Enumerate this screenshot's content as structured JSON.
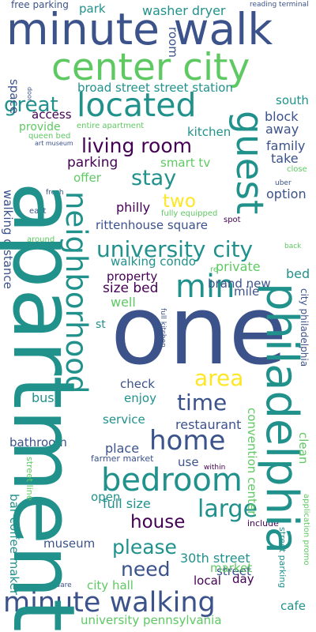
{
  "word_cloud": {
    "background": "#ffffff",
    "palette": [
      "#440154",
      "#3b528b",
      "#21918c",
      "#5ec962",
      "#fde725"
    ],
    "words": [
      {
        "text": "free parking",
        "color": "#3b528b"
      },
      {
        "text": "park",
        "color": "#21918c"
      },
      {
        "text": "reading terminal",
        "color": "#3b528b"
      },
      {
        "text": "minute walk",
        "color": "#3b528b"
      },
      {
        "text": "washer dryer",
        "color": "#21918c"
      },
      {
        "text": "center city",
        "color": "#5ec962"
      },
      {
        "text": "room",
        "color": "#3b528b"
      },
      {
        "text": "located",
        "color": "#21918c"
      },
      {
        "text": "great",
        "color": "#21918c"
      },
      {
        "text": "broad street street station",
        "color": "#21918c"
      },
      {
        "text": "south",
        "color": "#21918c"
      },
      {
        "text": "access",
        "color": "#440154"
      },
      {
        "text": "block",
        "color": "#3b528b"
      },
      {
        "text": "provide",
        "color": "#5ec962"
      },
      {
        "text": "entire apartment",
        "color": "#5ec962"
      },
      {
        "text": "kitchen",
        "color": "#21918c"
      },
      {
        "text": "away",
        "color": "#3b528b"
      },
      {
        "text": "queen bed",
        "color": "#5ec962"
      },
      {
        "text": "art museum",
        "color": "#3b528b"
      },
      {
        "text": "living room",
        "color": "#440154"
      },
      {
        "text": "family",
        "color": "#3b528b"
      },
      {
        "text": "take",
        "color": "#3b528b"
      },
      {
        "text": "close",
        "color": "#5ec962"
      },
      {
        "text": "parking",
        "color": "#440154"
      },
      {
        "text": "smart tv",
        "color": "#5ec962"
      },
      {
        "text": "stay",
        "color": "#21918c"
      },
      {
        "text": "offer",
        "color": "#5ec962"
      },
      {
        "text": "uber",
        "color": "#3b528b"
      },
      {
        "text": "option",
        "color": "#3b528b"
      },
      {
        "text": "two",
        "color": "#fde725"
      },
      {
        "text": "fresh",
        "color": "#3b528b"
      },
      {
        "text": "philly",
        "color": "#440154"
      },
      {
        "text": "east",
        "color": "#3b528b"
      },
      {
        "text": "rittenhouse square",
        "color": "#3b528b"
      },
      {
        "text": "fully equipped",
        "color": "#5ec962"
      },
      {
        "text": "spot",
        "color": "#440154"
      },
      {
        "text": "around",
        "color": "#5ec962"
      },
      {
        "text": "university city",
        "color": "#21918c"
      },
      {
        "text": "back",
        "color": "#5ec962"
      },
      {
        "text": "walking condo",
        "color": "#21918c"
      },
      {
        "text": "min",
        "color": "#21918c"
      },
      {
        "text": "private",
        "color": "#5ec962"
      },
      {
        "text": "re",
        "color": "#5ec962"
      },
      {
        "text": "property",
        "color": "#440154"
      },
      {
        "text": "bed",
        "color": "#21918c"
      },
      {
        "text": "mile",
        "color": "#3b528b"
      },
      {
        "text": "size bed",
        "color": "#440154"
      },
      {
        "text": "brand new",
        "color": "#3b528b"
      },
      {
        "text": "well",
        "color": "#5ec962"
      },
      {
        "text": "st",
        "color": "#21918c"
      },
      {
        "text": "one",
        "color": "#3b528b"
      },
      {
        "text": "area",
        "color": "#fde725"
      },
      {
        "text": "check",
        "color": "#3b528b"
      },
      {
        "text": "time",
        "color": "#3b528b"
      },
      {
        "text": "bus",
        "color": "#21918c"
      },
      {
        "text": "enjoy",
        "color": "#21918c"
      },
      {
        "text": "service",
        "color": "#21918c"
      },
      {
        "text": "restaurant",
        "color": "#3b528b"
      },
      {
        "text": "home",
        "color": "#3b528b"
      },
      {
        "text": "bathroom",
        "color": "#3b528b"
      },
      {
        "text": "place",
        "color": "#3b528b"
      },
      {
        "text": "use",
        "color": "#3b528b"
      },
      {
        "text": "farmer market",
        "color": "#3b528b"
      },
      {
        "text": "within",
        "color": "#440154"
      },
      {
        "text": "bedroom",
        "color": "#21918c"
      },
      {
        "text": "large",
        "color": "#21918c"
      },
      {
        "text": "open",
        "color": "#21918c"
      },
      {
        "text": "full size",
        "color": "#21918c"
      },
      {
        "text": "house",
        "color": "#440154"
      },
      {
        "text": "include",
        "color": "#440154"
      },
      {
        "text": "please",
        "color": "#21918c"
      },
      {
        "text": "museum",
        "color": "#3b528b"
      },
      {
        "text": "30th street",
        "color": "#21918c"
      },
      {
        "text": "street",
        "color": "#3b528b"
      },
      {
        "text": "need",
        "color": "#3b528b"
      },
      {
        "text": "market",
        "color": "#5ec962"
      },
      {
        "text": "local",
        "color": "#440154"
      },
      {
        "text": "square",
        "color": "#3b528b"
      },
      {
        "text": "city hall",
        "color": "#5ec962"
      },
      {
        "text": "day",
        "color": "#440154"
      },
      {
        "text": "minute walking",
        "color": "#3b528b"
      },
      {
        "text": "cafe",
        "color": "#21918c"
      },
      {
        "text": "university pennsylvania",
        "color": "#5ec962"
      },
      {
        "text": "door",
        "color": "#3b528b"
      },
      {
        "text": "space",
        "color": "#3b528b"
      },
      {
        "text": "walking distance",
        "color": "#3b528b"
      },
      {
        "text": "neighborhood",
        "color": "#21918c"
      },
      {
        "text": "apartment",
        "color": "#21918c"
      },
      {
        "text": "guest",
        "color": "#21918c"
      },
      {
        "text": "philadelphia",
        "color": "#21918c"
      },
      {
        "text": "full kitchen",
        "color": "#3b528b"
      },
      {
        "text": "city philadelphia",
        "color": "#3b528b"
      },
      {
        "text": "convention center",
        "color": "#5ec962"
      },
      {
        "text": "clean",
        "color": "#5ec962"
      },
      {
        "text": "street line",
        "color": "#5ec962"
      },
      {
        "text": "bar coffee maker",
        "color": "#21918c"
      },
      {
        "text": "street parking",
        "color": "#21918c"
      },
      {
        "text": "application promo",
        "color": "#5ec962"
      }
    ]
  }
}
